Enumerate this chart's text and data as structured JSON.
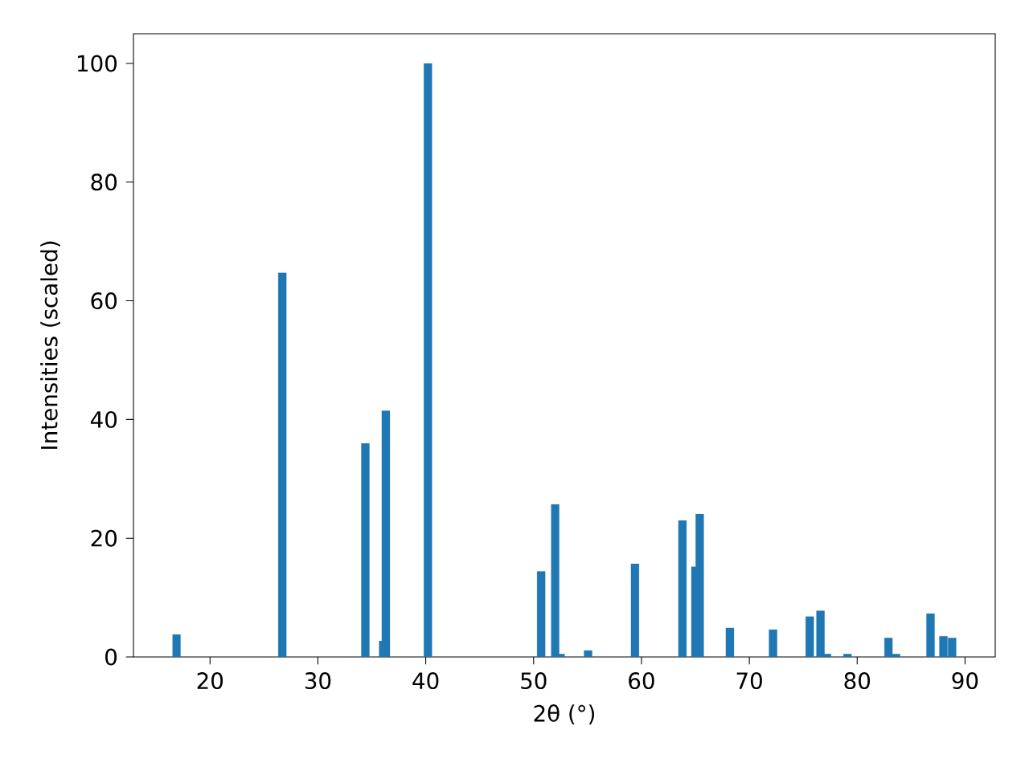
{
  "chart_data": {
    "type": "bar",
    "xlabel": "2θ (°)",
    "ylabel": "Intensities (scaled)",
    "color": "#1f77b4",
    "x": [
      16.9,
      26.7,
      34.4,
      36.05,
      36.3,
      40.2,
      50.7,
      52.0,
      52.5,
      55.05,
      59.4,
      63.8,
      65.0,
      65.4,
      68.2,
      72.2,
      75.6,
      76.6,
      77.2,
      79.1,
      82.9,
      83.6,
      86.8,
      88.0,
      88.8
    ],
    "values": [
      3.8,
      64.7,
      36.0,
      2.7,
      41.5,
      100,
      14.4,
      25.7,
      0.5,
      1.1,
      15.7,
      23.0,
      15.2,
      24.1,
      4.9,
      4.6,
      6.8,
      7.8,
      0.5,
      0.5,
      3.2,
      0.5,
      7.3,
      3.5,
      3.2
    ],
    "xlim": [
      12.9,
      92.8
    ],
    "ylim": [
      0,
      105
    ],
    "xticks": [
      20,
      30,
      40,
      50,
      60,
      70,
      80,
      90
    ],
    "yticks": [
      0,
      20,
      40,
      60,
      80,
      100
    ]
  }
}
